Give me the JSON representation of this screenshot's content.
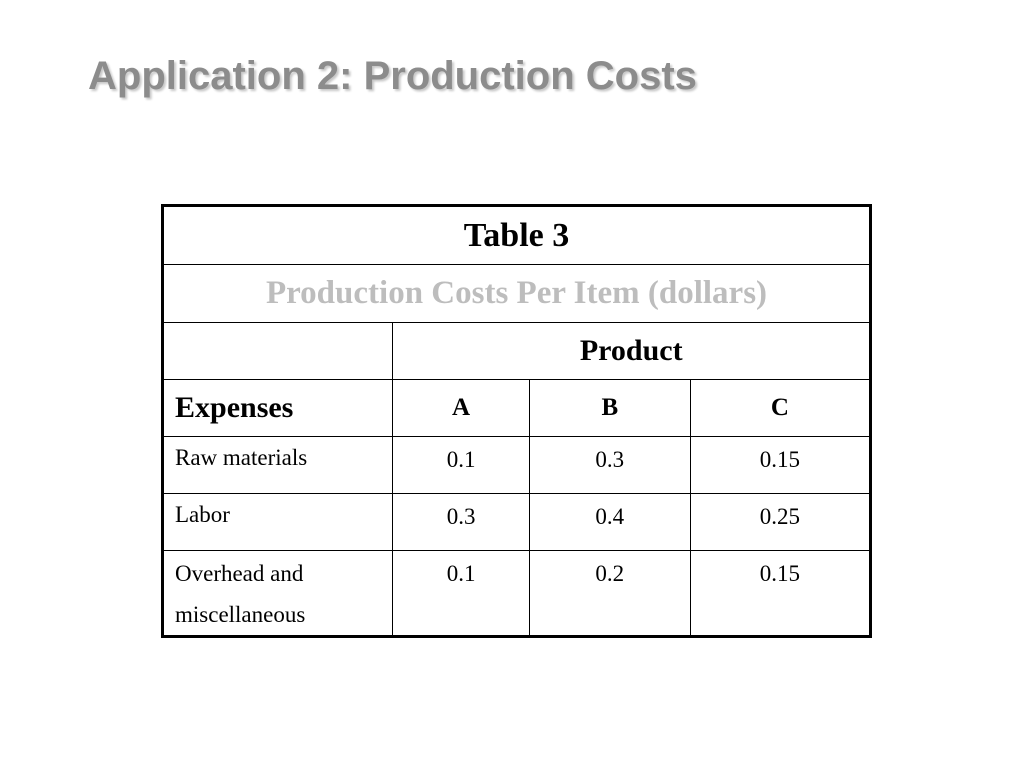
{
  "slide": {
    "title": "Application 2: Production Costs"
  },
  "table": {
    "caption": "Table 3",
    "subtitle": "Production Costs Per Item (dollars)",
    "group_header": "Product",
    "row_header_label": "Expenses",
    "columns": [
      "A",
      "B",
      "C"
    ],
    "rows": [
      {
        "expense": "Raw materials",
        "values": [
          "0.1",
          "0.3",
          "0.15"
        ]
      },
      {
        "expense": "Labor",
        "values": [
          "0.3",
          "0.4",
          "0.25"
        ]
      },
      {
        "expense": "Overhead and miscellaneous",
        "values": [
          "0.1",
          "0.2",
          "0.15"
        ]
      }
    ]
  },
  "colors": {
    "title": "#8c8c8c",
    "subtitle": "#bdbdbd",
    "border": "#000000"
  }
}
